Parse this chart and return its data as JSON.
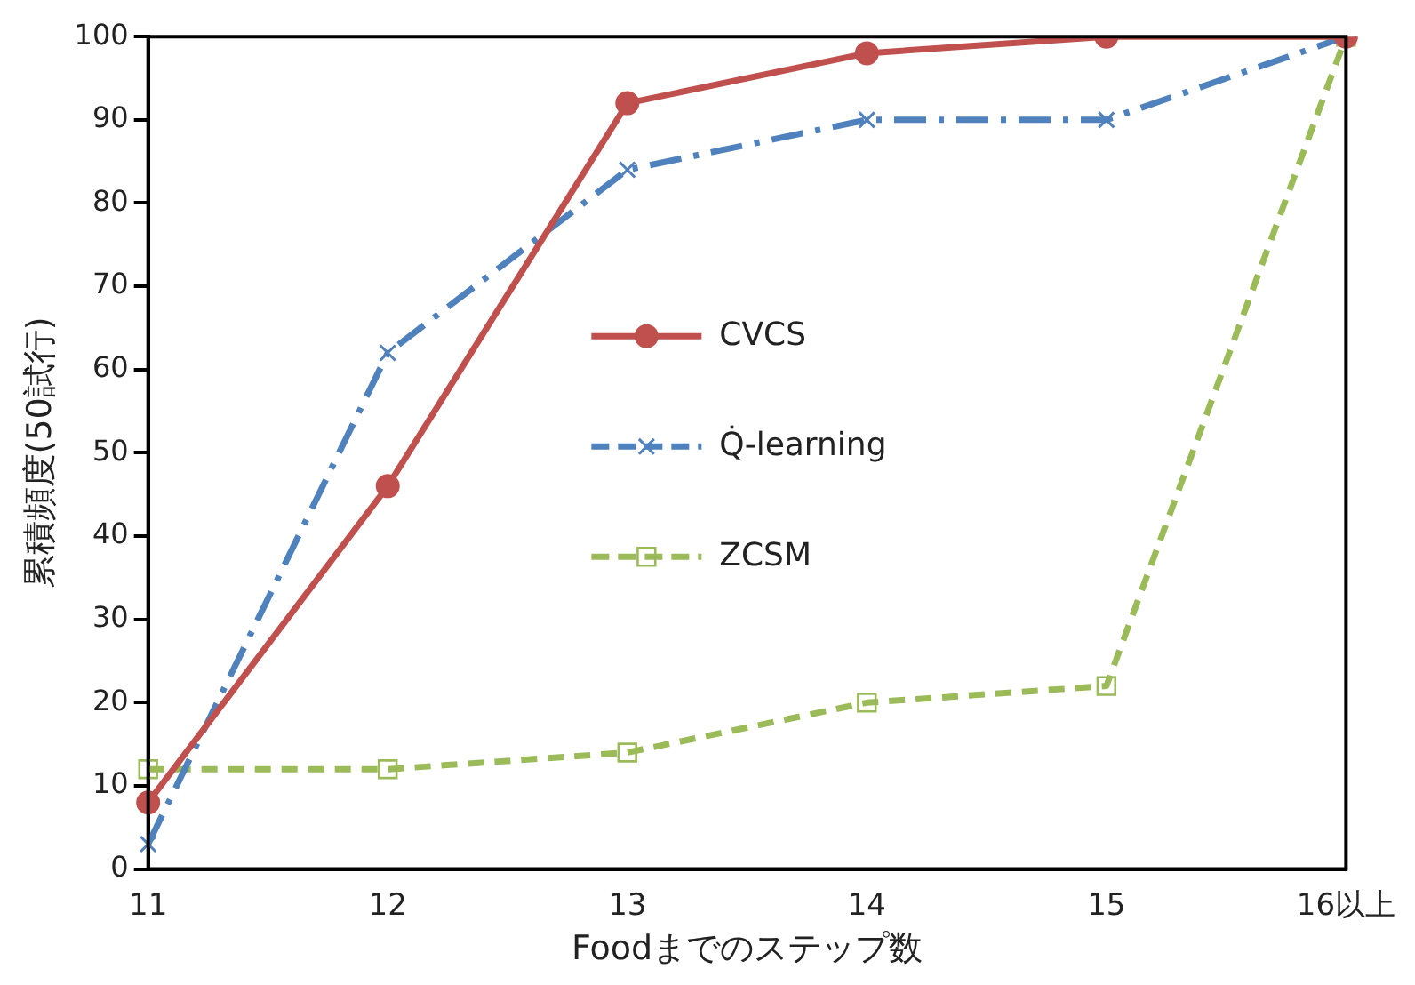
{
  "chart_data": {
    "type": "line",
    "xlabel": "Foodまでのステップ数",
    "ylabel": "累積頻度(50試行)",
    "categories": [
      "11",
      "12",
      "13",
      "14",
      "15",
      "16以上"
    ],
    "series": [
      {
        "name": "CVCS",
        "color": "#c0504d",
        "values": [
          8,
          46,
          92,
          98,
          100,
          100
        ],
        "marker": "circle",
        "line_style": "solid"
      },
      {
        "name": "Q̇-learning",
        "color": "#4f81bd",
        "values": [
          3,
          62,
          84,
          90,
          90,
          100
        ],
        "marker": "cross",
        "line_style": "dashed"
      },
      {
        "name": "ZCSM",
        "color": "#9bbb59",
        "values": [
          12,
          12,
          14,
          20,
          22,
          100
        ],
        "marker": "square",
        "line_style": "dotted"
      }
    ],
    "ylim": [
      0,
      100
    ],
    "yticks": [
      0,
      10,
      20,
      30,
      40,
      50,
      60,
      70,
      80,
      90,
      100
    ],
    "grid": false,
    "legend": "center"
  }
}
